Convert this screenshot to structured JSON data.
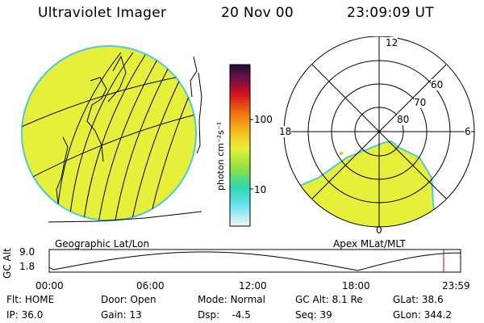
{
  "header": {
    "title": "Ultraviolet Imager",
    "date": "20 Nov 00",
    "time": "23:09:09 UT"
  },
  "colorbar": {
    "unit_label": "photon cm⁻²s⁻¹",
    "ticks": [
      "100",
      "10"
    ]
  },
  "geo_panel": {
    "caption": "Geographic Lat/Lon"
  },
  "polar_panel": {
    "caption": "Apex MLat/MLT",
    "lat_labels": [
      "60",
      "70",
      "80"
    ],
    "mlt_labels": {
      "top": "12",
      "left": "18",
      "right": "6",
      "bottom": "0"
    }
  },
  "altitude_plot": {
    "ylabel": "GC Alt",
    "yticks": [
      "9.0",
      "1.8"
    ],
    "xticks": [
      "00:00",
      "06:00",
      "12:00",
      "18:00",
      "23:59"
    ]
  },
  "status": {
    "row1": [
      {
        "label": "Flt:",
        "value": "HOME"
      },
      {
        "label": "Door:",
        "value": "Open"
      },
      {
        "label": "Mode:",
        "value": "Normal"
      },
      {
        "label": "GC Alt:",
        "value": "8.1 Re"
      },
      {
        "label": "GLat:",
        "value": "38.6"
      }
    ],
    "row2": [
      {
        "label": "IP:",
        "value": "36.0"
      },
      {
        "label": "Gain:",
        "value": "13"
      },
      {
        "label": "Dsp:",
        "value": "-4.5"
      },
      {
        "label": "Seq:",
        "value": "39"
      },
      {
        "label": "GLon:",
        "value": "344.2"
      }
    ]
  },
  "colors": {
    "aurora_fill": "#e6f03a",
    "edge": "#4ec9d8",
    "line": "#000000",
    "marker": "#cc0000"
  }
}
